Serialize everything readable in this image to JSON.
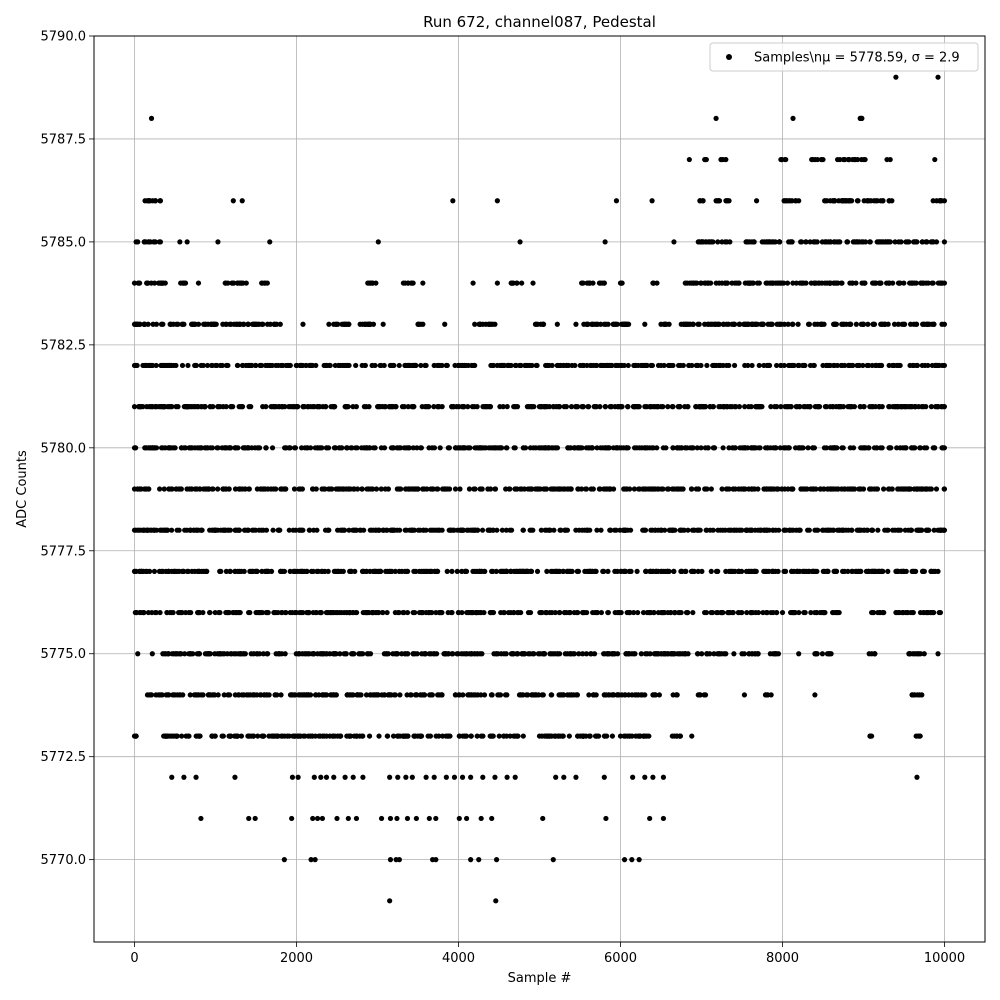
{
  "chart_data": {
    "type": "scatter",
    "title": "Run 672, channel087, Pedestal",
    "xlabel": "Sample #",
    "ylabel": "ADC Counts",
    "xlim": [
      -500,
      10500
    ],
    "ylim": [
      5768,
      5790
    ],
    "xticks": [
      0,
      2000,
      4000,
      6000,
      8000,
      10000
    ],
    "yticks": [
      5770.0,
      5772.5,
      5775.0,
      5777.5,
      5780.0,
      5782.5,
      5785.0,
      5787.5,
      5790.0
    ],
    "xtick_labels": [
      "0",
      "2000",
      "4000",
      "6000",
      "8000",
      "10000"
    ],
    "ytick_labels": [
      "5770.0",
      "5772.5",
      "5775.0",
      "5777.5",
      "5780.0",
      "5782.5",
      "5785.0",
      "5787.5",
      "5790.0"
    ],
    "grid": true,
    "legend_position": "top-right",
    "marker_color": "#000000",
    "series": [
      {
        "name": "Samples\\nμ = 5778.59, σ = 2.9",
        "x_range": [
          0,
          9999
        ],
        "point_count": 10000,
        "mean": 5778.59,
        "sigma": 2.9,
        "level_coverage": [
          {
            "y": 5769,
            "x": [
              3150,
              4460
            ]
          },
          {
            "y": 5770,
            "x": [
              1850,
              2180,
              2230,
              3160,
              3230,
              3270,
              3680,
              3720,
              4150,
              4250,
              4470,
              5170,
              6050,
              6140,
              6230
            ]
          },
          {
            "y": 5771,
            "x": [
              820,
              1410,
              1490,
              1940,
              2200,
              2260,
              2320,
              2500,
              2640,
              2740,
              3050,
              3160,
              3240,
              3370,
              3480,
              3640,
              3720,
              4010,
              4100,
              4280,
              4410,
              5040,
              5820,
              6360,
              6530
            ]
          },
          {
            "y": 5772,
            "x": [
              460,
              610,
              760,
              1240,
              1950,
              2020,
              2220,
              2300,
              2370,
              2460,
              2600,
              2700,
              2820,
              3150,
              3250,
              3350,
              3430,
              3600,
              3700,
              3850,
              3950,
              4050,
              4150,
              4300,
              4450,
              4600,
              4700,
              5200,
              5300,
              5450,
              5800,
              6150,
              6300,
              6400,
              6530,
              9660
            ]
          },
          {
            "y": 5773,
            "x": [
              [
                0,
                20
              ],
              [
                360,
                1320
              ],
              [
                1400,
                4800
              ],
              [
                5000,
                5900
              ],
              [
                6000,
                6350
              ],
              [
                6640,
                6740
              ],
              6880,
              [
                9080,
                9100
              ],
              [
                9650,
                9700
              ]
            ]
          },
          {
            "y": 5774,
            "x": [
              [
                160,
                5700
              ],
              [
                5800,
                6300
              ],
              [
                6400,
                6480
              ],
              [
                6650,
                6700
              ],
              [
                6960,
                7050
              ],
              7530,
              [
                7790,
                7860
              ],
              8400,
              [
                9600,
                9720
              ]
            ]
          },
          {
            "y": 5775,
            "x": [
              40,
              220,
              [
                350,
                7300
              ],
              7400,
              [
                7500,
                7700
              ],
              [
                7850,
                7950
              ],
              8200,
              [
                8400,
                8600
              ],
              [
                9070,
                9140
              ],
              [
                9560,
                9750
              ],
              9920
            ]
          },
          {
            "y": 5776,
            "x": [
              [
                10,
                8000
              ],
              [
                8100,
                8280
              ],
              [
                8350,
                8700
              ],
              [
                9100,
                9250
              ],
              [
                9400,
                9950
              ]
            ]
          },
          {
            "y": 5777,
            "x": [
              [
                0,
                7200
              ],
              [
                7300,
                9300
              ],
              [
                9400,
                9920
              ]
            ]
          },
          {
            "y": 5778,
            "x": [
              [
                0,
                9050
              ],
              [
                9100,
                9999
              ]
            ]
          },
          {
            "y": 5779,
            "x": [
              [
                0,
                9999
              ]
            ]
          },
          {
            "y": 5780,
            "x": [
              [
                0,
                4700
              ],
              [
                4800,
                9999
              ]
            ]
          },
          {
            "y": 5781,
            "x": [
              [
                0,
                9999
              ]
            ]
          },
          {
            "y": 5782,
            "x": [
              [
                0,
                3600
              ],
              [
                3700,
                4200
              ],
              [
                4400,
                9999
              ]
            ]
          },
          {
            "y": 5783,
            "x": [
              [
                0,
                350
              ],
              [
                440,
                1350
              ],
              [
                1400,
                1800
              ],
              2080,
              [
                2400,
                2950
              ],
              3070,
              [
                3500,
                3560
              ],
              3830,
              [
                4200,
                4450
              ],
              [
                4950,
                5050
              ],
              5220,
              [
                5450,
                6100
              ],
              6300,
              [
                6500,
                6600
              ],
              [
                6750,
                9999
              ]
            ]
          },
          {
            "y": 5784,
            "x": [
              [
                0,
                380
              ],
              [
                570,
                630
              ],
              790,
              [
                1120,
                1380
              ],
              [
                1570,
                1640
              ],
              [
                2880,
                2980
              ],
              [
                3320,
                3440
              ],
              3560,
              4180,
              4480,
              [
                4650,
                4780
              ],
              4920,
              [
                5520,
                5660
              ],
              [
                5740,
                5800
              ],
              [
                6000,
                6020
              ],
              [
                6400,
                6450
              ],
              [
                6800,
                9999
              ]
            ]
          },
          {
            "y": 5785,
            "x": [
              20,
              40,
              [
                120,
                320
              ],
              560,
              650,
              1030,
              1670,
              3010,
              4760,
              5810,
              6660,
              [
                6960,
                7350
              ],
              [
                7550,
                7650
              ],
              [
                7750,
                9999
              ]
            ]
          },
          {
            "y": 5786,
            "x": [
              [
                130,
                320
              ],
              1220,
              1330,
              3930,
              4480,
              5950,
              6390,
              [
                6980,
                7020
              ],
              [
                7180,
                7340
              ],
              7680,
              [
                8020,
                8200
              ],
              [
                8520,
                9350
              ],
              [
                9860,
                9999
              ]
            ]
          },
          {
            "y": 5787,
            "x": [
              6850,
              [
                7040,
                7060
              ],
              [
                7240,
                7300
              ],
              [
                7980,
                8040
              ],
              [
                8360,
                8500
              ],
              [
                8680,
                9020
              ],
              9290,
              9330,
              9880
            ]
          },
          {
            "y": 5788,
            "x": [
              210,
              7180,
              8130,
              [
                8960,
                8980
              ]
            ]
          },
          {
            "y": 5789,
            "x": [
              9400,
              9920
            ]
          }
        ]
      }
    ]
  }
}
